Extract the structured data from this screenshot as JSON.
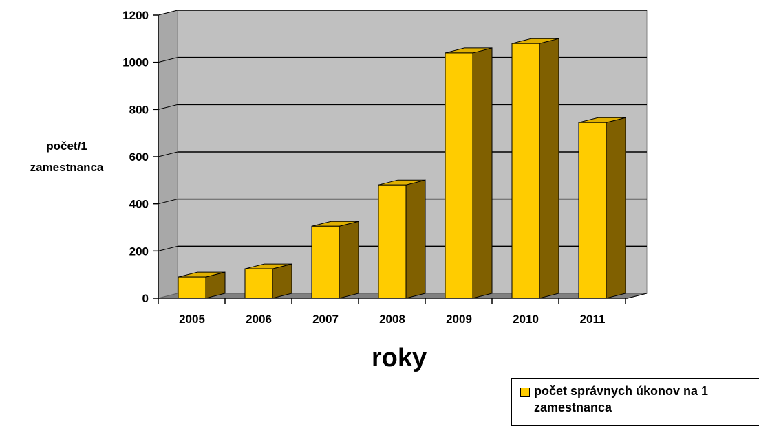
{
  "chart_data": {
    "type": "bar",
    "categories": [
      "2005",
      "2006",
      "2007",
      "2008",
      "2009",
      "2010",
      "2011"
    ],
    "series": [
      {
        "name": "počet správnych úkonov na 1 zamestnanca",
        "values": [
          90,
          125,
          305,
          480,
          1040,
          1080,
          745
        ]
      }
    ],
    "xlabel": "roky",
    "ylabel_lines": [
      "počet/1",
      "zamestnanca"
    ],
    "ylim": [
      0,
      1200
    ],
    "yticks": [
      0,
      200,
      400,
      600,
      800,
      1000,
      1200
    ],
    "grid": true,
    "legend": "bottom-right",
    "style": "3d-bar"
  },
  "colors": {
    "bar_front": "#FFCC00",
    "bar_side": "#806000",
    "bar_top": "#E0B000",
    "plot_wall": "#C0C0C0",
    "floor": "#808080"
  }
}
